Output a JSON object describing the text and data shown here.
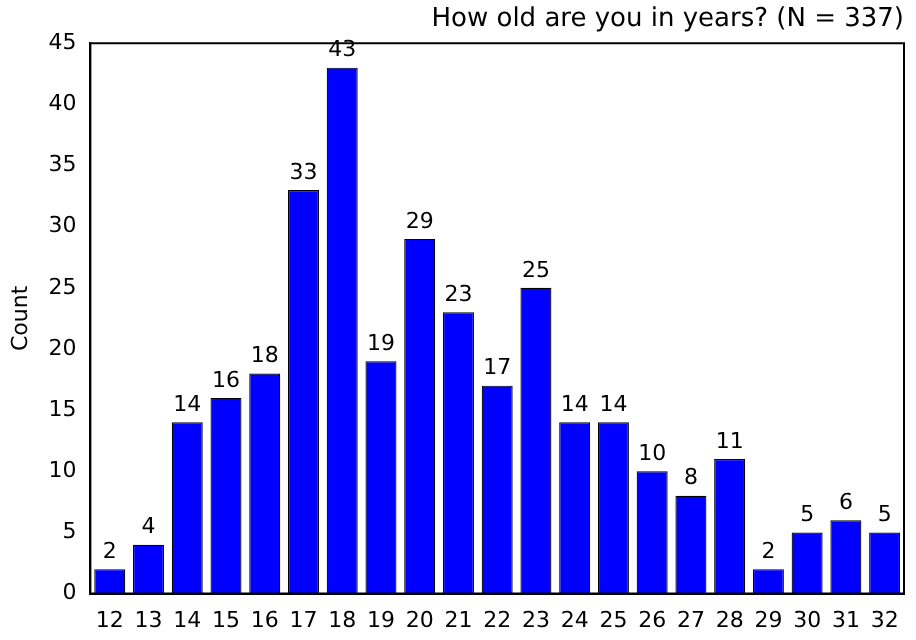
{
  "chart_data": {
    "type": "bar",
    "title": "How old are you in years? (N = 337)",
    "ylabel": "Count",
    "categories": [
      "12",
      "13",
      "14",
      "15",
      "16",
      "17",
      "18",
      "19",
      "20",
      "21",
      "22",
      "23",
      "24",
      "25",
      "26",
      "27",
      "28",
      "29",
      "30",
      "31",
      "32"
    ],
    "values": [
      2,
      4,
      14,
      16,
      18,
      33,
      43,
      19,
      29,
      23,
      17,
      25,
      14,
      14,
      10,
      8,
      11,
      2,
      5,
      6,
      5
    ],
    "color": "#0000ff",
    "ylim": [
      0,
      45
    ],
    "yticks": [
      0,
      5,
      10,
      15,
      20,
      25,
      30,
      35,
      40,
      45
    ],
    "grid": false,
    "legend": false,
    "data_labels": true
  }
}
